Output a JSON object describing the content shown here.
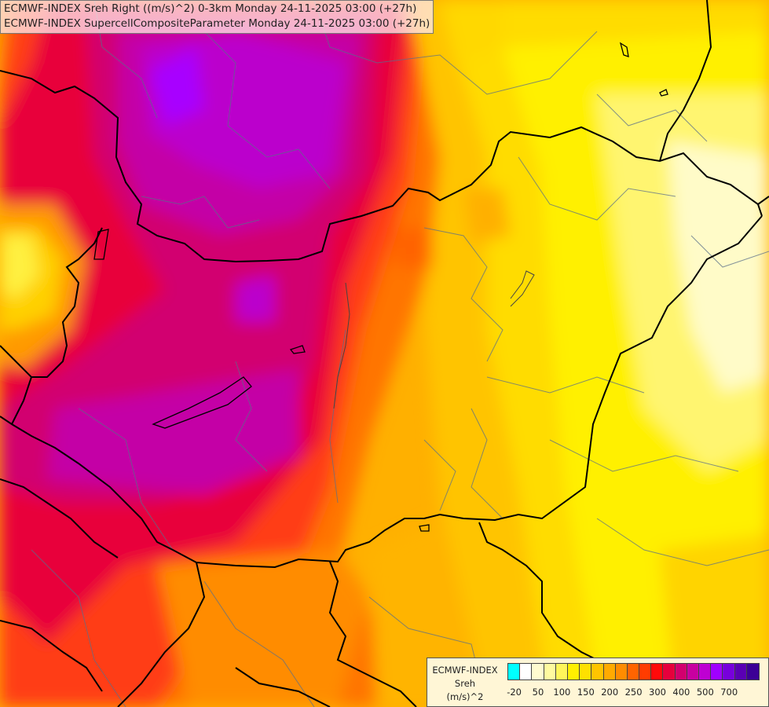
{
  "title": {
    "line1": "ECMWF-INDEX Sreh Right ((m/s)^2) 0-3km Monday 24-11-2025 03:00 (+27h)",
    "line2": "ECMWF-INDEX SupercellCompositeParameter Monday 24-11-2025 03:00 (+27h)"
  },
  "legend": {
    "line1": "ECMWF-INDEX",
    "line2": "Sreh",
    "line3": "(m/s)^2",
    "colors": [
      "#00ffff",
      "#ffffff",
      "#fffbd0",
      "#fffaa0",
      "#fff55a",
      "#fff000",
      "#ffe000",
      "#ffc400",
      "#ffaa00",
      "#ff8c00",
      "#ff6400",
      "#ff3c00",
      "#ff0a0a",
      "#e6003c",
      "#d2006e",
      "#c800a0",
      "#be00d2",
      "#a000ff",
      "#7800dc",
      "#5a00b4",
      "#3c0096"
    ],
    "ticks": [
      {
        "label": "-20",
        "pos": 0
      },
      {
        "label": "50",
        "pos": 2
      },
      {
        "label": "100",
        "pos": 4
      },
      {
        "label": "150",
        "pos": 6
      },
      {
        "label": "200",
        "pos": 8
      },
      {
        "label": "250",
        "pos": 10
      },
      {
        "label": "300",
        "pos": 12
      },
      {
        "label": "400",
        "pos": 14
      },
      {
        "label": "500",
        "pos": 16
      },
      {
        "label": "700",
        "pos": 18
      }
    ]
  }
}
